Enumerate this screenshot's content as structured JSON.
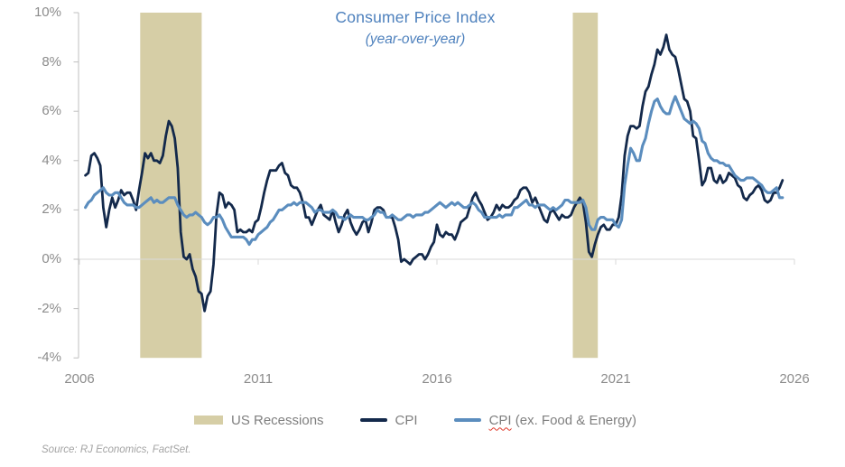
{
  "title": {
    "text": "Consumer Price Index",
    "subtitle": "(year-over-year)"
  },
  "source_note": "Source: RJ Economics, FactSet.",
  "colors": {
    "title_blue": "#4E81BD",
    "cpi_line": "#13294B",
    "core_cpi_line": "#5B8DBE",
    "recession_band": "#D6CEA6",
    "axis_text": "#8C8C8C",
    "gridline": "#D9D9D9",
    "axis_line": "#BFBFBF",
    "spellcheck_red": "#E0392B"
  },
  "legend": [
    {
      "label": "US Recessions",
      "type": "swatch",
      "color": "#D6CEA6"
    },
    {
      "label": "CPI",
      "type": "line",
      "color": "#13294B"
    },
    {
      "label": "CPI (ex. Food & Energy)",
      "label_word": "CPI",
      "label_rest": " (ex. Food & Energy)",
      "type": "line",
      "color": "#5B8DBE",
      "spellcheck_underline_on_word": true
    }
  ],
  "chart_data": {
    "type": "line",
    "title": "Consumer Price Index",
    "subtitle": "(year-over-year)",
    "xlabel": "",
    "ylabel": "",
    "x_axis": {
      "min": 2006,
      "max": 2026,
      "ticks": [
        2006,
        2011,
        2016,
        2021,
        2026
      ]
    },
    "y_axis": {
      "min": -4,
      "max": 10,
      "ticks": [
        10,
        8,
        6,
        4,
        2,
        0,
        -2,
        -4
      ],
      "format": "percent",
      "gridline_at": 0
    },
    "legend_position": "bottom",
    "recessions": [
      {
        "start": 2007.7,
        "end": 2009.42
      },
      {
        "start": 2019.8,
        "end": 2020.5
      }
    ],
    "series_start": "2006-03",
    "series_step": "monthly",
    "series": [
      {
        "name": "CPI",
        "color": "#13294B",
        "values": [
          3.4,
          3.5,
          4.2,
          4.3,
          4.1,
          3.8,
          2.1,
          1.3,
          2.0,
          2.5,
          2.1,
          2.4,
          2.8,
          2.6,
          2.7,
          2.7,
          2.4,
          2.0,
          2.8,
          3.5,
          4.3,
          4.1,
          4.3,
          4.0,
          4.0,
          3.9,
          4.2,
          5.0,
          5.6,
          5.4,
          4.9,
          3.7,
          1.1,
          0.1,
          0.0,
          0.2,
          -0.4,
          -0.7,
          -1.3,
          -1.4,
          -2.1,
          -1.5,
          -1.3,
          -0.2,
          1.8,
          2.7,
          2.6,
          2.1,
          2.3,
          2.2,
          2.0,
          1.1,
          1.2,
          1.1,
          1.1,
          1.2,
          1.1,
          1.5,
          1.6,
          2.1,
          2.7,
          3.2,
          3.6,
          3.6,
          3.6,
          3.8,
          3.9,
          3.5,
          3.4,
          3.0,
          2.9,
          2.9,
          2.7,
          2.3,
          1.7,
          1.7,
          1.4,
          1.7,
          2.0,
          2.2,
          1.8,
          1.7,
          1.6,
          2.0,
          1.5,
          1.1,
          1.4,
          1.8,
          2.0,
          1.5,
          1.2,
          1.0,
          1.2,
          1.5,
          1.6,
          1.1,
          1.5,
          2.0,
          2.1,
          2.1,
          2.0,
          1.7,
          1.7,
          1.7,
          1.3,
          0.8,
          -0.1,
          0.0,
          -0.1,
          -0.2,
          0.0,
          0.1,
          0.2,
          0.2,
          0.0,
          0.2,
          0.5,
          0.7,
          1.4,
          1.0,
          0.9,
          1.1,
          1.0,
          1.0,
          0.8,
          1.1,
          1.5,
          1.6,
          1.7,
          2.1,
          2.5,
          2.7,
          2.4,
          2.2,
          1.9,
          1.6,
          1.7,
          1.9,
          2.2,
          2.0,
          2.2,
          2.1,
          2.1,
          2.2,
          2.4,
          2.5,
          2.8,
          2.9,
          2.9,
          2.7,
          2.3,
          2.5,
          2.2,
          1.9,
          1.6,
          1.5,
          1.9,
          2.0,
          1.8,
          1.6,
          1.8,
          1.7,
          1.7,
          1.8,
          2.1,
          2.3,
          2.5,
          2.3,
          1.5,
          0.3,
          0.1,
          0.6,
          1.0,
          1.3,
          1.4,
          1.2,
          1.2,
          1.4,
          1.4,
          1.7,
          2.6,
          4.2,
          5.0,
          5.4,
          5.4,
          5.3,
          5.4,
          6.2,
          6.8,
          7.0,
          7.5,
          7.9,
          8.5,
          8.3,
          8.6,
          9.1,
          8.5,
          8.3,
          8.2,
          7.7,
          7.1,
          6.5,
          6.4,
          6.0,
          5.0,
          4.9,
          4.0,
          3.0,
          3.2,
          3.7,
          3.7,
          3.2,
          3.1,
          3.4,
          3.1,
          3.2,
          3.5,
          3.4,
          3.3,
          3.0,
          2.9,
          2.5,
          2.4,
          2.6,
          2.7,
          2.9,
          3.0,
          2.8,
          2.4,
          2.3,
          2.4,
          2.7,
          2.7,
          2.9,
          3.2
        ]
      },
      {
        "name": "CPI (ex. Food & Energy)",
        "color": "#5B8DBE",
        "values": [
          2.1,
          2.3,
          2.4,
          2.6,
          2.7,
          2.8,
          2.9,
          2.7,
          2.6,
          2.6,
          2.7,
          2.7,
          2.5,
          2.3,
          2.2,
          2.2,
          2.2,
          2.1,
          2.1,
          2.2,
          2.3,
          2.4,
          2.5,
          2.3,
          2.4,
          2.3,
          2.3,
          2.4,
          2.5,
          2.5,
          2.5,
          2.2,
          2.0,
          1.8,
          1.7,
          1.8,
          1.8,
          1.9,
          1.8,
          1.7,
          1.5,
          1.4,
          1.5,
          1.7,
          1.7,
          1.8,
          1.6,
          1.3,
          1.1,
          0.9,
          0.9,
          0.9,
          0.9,
          0.9,
          0.8,
          0.6,
          0.8,
          0.8,
          1.0,
          1.1,
          1.2,
          1.3,
          1.5,
          1.6,
          1.8,
          2.0,
          2.0,
          2.1,
          2.2,
          2.2,
          2.3,
          2.2,
          2.3,
          2.3,
          2.3,
          2.2,
          2.1,
          1.9,
          2.0,
          2.0,
          1.9,
          1.9,
          1.9,
          2.0,
          1.9,
          1.7,
          1.7,
          1.6,
          1.7,
          1.8,
          1.7,
          1.7,
          1.7,
          1.7,
          1.6,
          1.6,
          1.7,
          1.8,
          2.0,
          1.9,
          1.9,
          1.7,
          1.7,
          1.8,
          1.7,
          1.6,
          1.6,
          1.7,
          1.8,
          1.8,
          1.7,
          1.8,
          1.8,
          1.8,
          1.9,
          1.9,
          2.0,
          2.1,
          2.2,
          2.3,
          2.2,
          2.1,
          2.2,
          2.3,
          2.2,
          2.3,
          2.2,
          2.1,
          2.1,
          2.2,
          2.3,
          2.2,
          2.0,
          1.9,
          1.7,
          1.7,
          1.7,
          1.7,
          1.7,
          1.8,
          1.7,
          1.8,
          1.8,
          1.8,
          2.1,
          2.1,
          2.2,
          2.3,
          2.4,
          2.2,
          2.2,
          2.1,
          2.2,
          2.2,
          2.2,
          2.1,
          2.0,
          2.1,
          2.0,
          2.1,
          2.2,
          2.4,
          2.4,
          2.3,
          2.3,
          2.3,
          2.3,
          2.4,
          2.1,
          1.4,
          1.2,
          1.2,
          1.6,
          1.7,
          1.7,
          1.6,
          1.6,
          1.6,
          1.4,
          1.3,
          1.6,
          3.0,
          3.8,
          4.5,
          4.3,
          4.0,
          4.0,
          4.6,
          4.9,
          5.5,
          6.0,
          6.4,
          6.5,
          6.2,
          6.0,
          5.9,
          5.9,
          6.3,
          6.6,
          6.3,
          6.0,
          5.7,
          5.6,
          5.5,
          5.6,
          5.5,
          5.3,
          4.8,
          4.7,
          4.3,
          4.1,
          4.0,
          4.0,
          3.9,
          3.9,
          3.8,
          3.8,
          3.6,
          3.4,
          3.3,
          3.2,
          3.2,
          3.3,
          3.3,
          3.3,
          3.2,
          3.1,
          3.0,
          2.8,
          2.7,
          2.7,
          2.8,
          2.9,
          2.5,
          2.5
        ]
      }
    ]
  }
}
